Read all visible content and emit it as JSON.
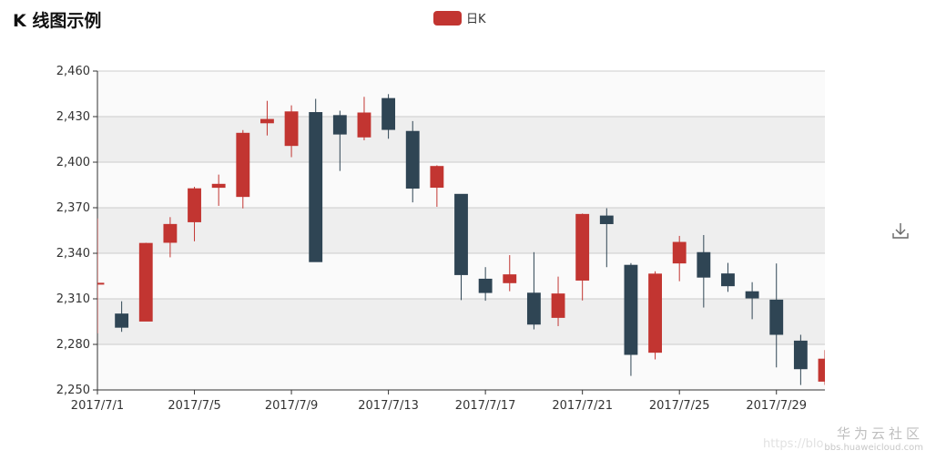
{
  "title": "K 线图示例",
  "legend": {
    "label": "日K",
    "color": "#c23531"
  },
  "colors": {
    "up": "#c23531",
    "down": "#2f4554",
    "band_light": "#fafafa",
    "band_dark": "#eeeeee",
    "grid": "#cccccc",
    "axis": "#333333"
  },
  "watermark": {
    "cn": "华为云社区",
    "url": "bbs.huaweicloud.com",
    "faint": "https://blo"
  },
  "chart_data": {
    "type": "candlestick",
    "title": "K 线图示例",
    "series": [
      {
        "name": "日K"
      }
    ],
    "ylim": [
      2250,
      2460
    ],
    "yticks": [
      2250,
      2280,
      2310,
      2340,
      2370,
      2400,
      2430,
      2460
    ],
    "xtick_labels": [
      "2017/7/1",
      "2017/7/5",
      "2017/7/9",
      "2017/7/13",
      "2017/7/17",
      "2017/7/21",
      "2017/7/25",
      "2017/7/29"
    ],
    "xtick_days": [
      1,
      5,
      9,
      13,
      17,
      21,
      25,
      29
    ],
    "grid": true,
    "legend_position": "top-center",
    "candles": [
      {
        "day": 0,
        "open": 2320.26,
        "close": 2320.26,
        "low": 2287.3,
        "high": 2362.94
      },
      {
        "day": 1,
        "open": 2300,
        "close": 2291.3,
        "low": 2288.26,
        "high": 2308.38
      },
      {
        "day": 2,
        "open": 2295.35,
        "close": 2346.5,
        "low": 2295.35,
        "high": 2346.92
      },
      {
        "day": 3,
        "open": 2347.22,
        "close": 2358.98,
        "low": 2337.35,
        "high": 2363.8
      },
      {
        "day": 4,
        "open": 2360.75,
        "close": 2382.48,
        "low": 2347.89,
        "high": 2383.76
      },
      {
        "day": 5,
        "open": 2383.43,
        "close": 2385.42,
        "low": 2371.23,
        "high": 2391.82
      },
      {
        "day": 6,
        "open": 2377.41,
        "close": 2419.02,
        "low": 2369.57,
        "high": 2421.15
      },
      {
        "day": 7,
        "open": 2425.92,
        "close": 2428.15,
        "low": 2417.58,
        "high": 2440.38
      },
      {
        "day": 8,
        "open": 2411,
        "close": 2433.13,
        "low": 2403.3,
        "high": 2437.42
      },
      {
        "day": 9,
        "open": 2432.68,
        "close": 2334.48,
        "low": 2334.48,
        "high": 2441.73
      },
      {
        "day": 10,
        "open": 2430.69,
        "close": 2418.53,
        "low": 2394.22,
        "high": 2433.89
      },
      {
        "day": 11,
        "open": 2416.62,
        "close": 2432.4,
        "low": 2414.4,
        "high": 2443.03
      },
      {
        "day": 12,
        "open": 2441.91,
        "close": 2421.56,
        "low": 2415.43,
        "high": 2444.8
      },
      {
        "day": 13,
        "open": 2420.26,
        "close": 2382.91,
        "low": 2373.53,
        "high": 2427.07
      },
      {
        "day": 14,
        "open": 2383.49,
        "close": 2397.18,
        "low": 2370.61,
        "high": 2397.94
      },
      {
        "day": 15,
        "open": 2378.82,
        "close": 2325.95,
        "low": 2309.17,
        "high": 2378.82
      },
      {
        "day": 16,
        "open": 2322.94,
        "close": 2314.16,
        "low": 2308.76,
        "high": 2330.88
      },
      {
        "day": 17,
        "open": 2320.62,
        "close": 2325.82,
        "low": 2315.01,
        "high": 2338.78
      },
      {
        "day": 18,
        "open": 2313.74,
        "close": 2293.34,
        "low": 2289.89,
        "high": 2340.71
      },
      {
        "day": 19,
        "open": 2297.77,
        "close": 2313.22,
        "low": 2292.03,
        "high": 2324.63
      },
      {
        "day": 20,
        "open": 2322.32,
        "close": 2365.59,
        "low": 2308.92,
        "high": 2366.16
      },
      {
        "day": 21,
        "open": 2364.54,
        "close": 2359.51,
        "low": 2330.86,
        "high": 2369.65
      },
      {
        "day": 22,
        "open": 2332.08,
        "close": 2273.4,
        "low": 2259.25,
        "high": 2333.54
      },
      {
        "day": 23,
        "open": 2274.81,
        "close": 2326.31,
        "low": 2270.1,
        "high": 2328.14
      },
      {
        "day": 24,
        "open": 2333.61,
        "close": 2347.18,
        "low": 2321.6,
        "high": 2351.44
      },
      {
        "day": 25,
        "open": 2340.44,
        "close": 2324.29,
        "low": 2304.27,
        "high": 2352.02
      },
      {
        "day": 26,
        "open": 2326.42,
        "close": 2318.61,
        "low": 2314.59,
        "high": 2333.67
      },
      {
        "day": 27,
        "open": 2314.68,
        "close": 2310.59,
        "low": 2296.58,
        "high": 2320.96
      },
      {
        "day": 28,
        "open": 2309.16,
        "close": 2286.6,
        "low": 2264.83,
        "high": 2333.29
      },
      {
        "day": 29,
        "open": 2282.17,
        "close": 2263.97,
        "low": 2253.25,
        "high": 2286.33
      },
      {
        "day": 30,
        "open": 2255.77,
        "close": 2270.28,
        "low": 2253.31,
        "high": 2276.22
      }
    ]
  }
}
